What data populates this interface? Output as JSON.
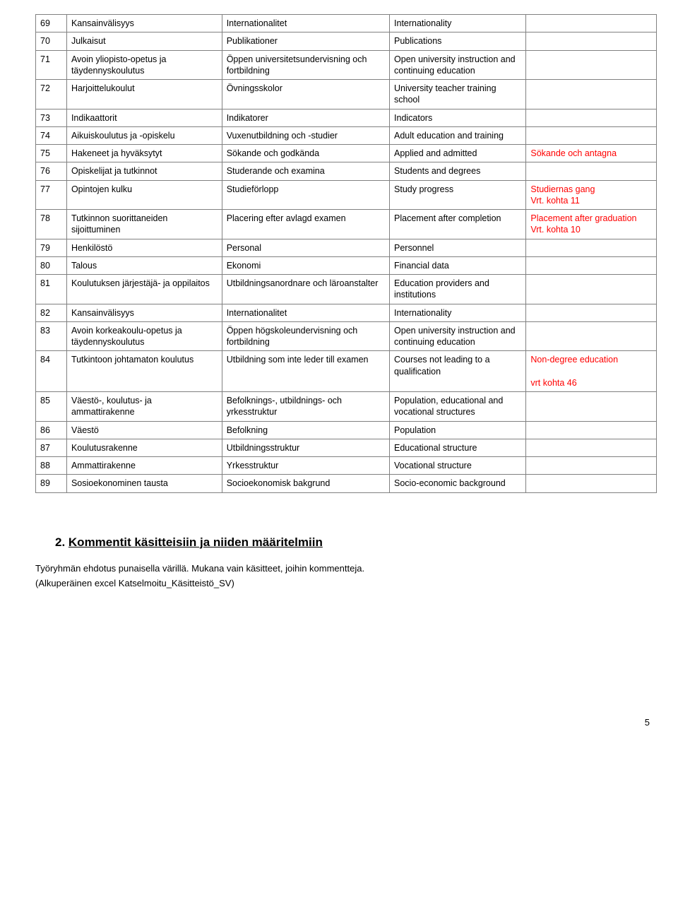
{
  "rows": [
    {
      "n": "69",
      "fi": "Kansainvälisyys",
      "sv": "Internationalitet",
      "en": "Internationality",
      "note": ""
    },
    {
      "n": "70",
      "fi": "Julkaisut",
      "sv": "Publikationer",
      "en": "Publications",
      "note": ""
    },
    {
      "n": "71",
      "fi": "Avoin yliopisto-opetus ja täydennyskoulutus",
      "sv": "Öppen universitetsundervisning och fortbildning",
      "en": "Open university instruction and continuing education",
      "note": ""
    },
    {
      "n": "72",
      "fi": "Harjoittelukoulut",
      "sv": "Övningsskolor",
      "en": "University teacher training school",
      "note": ""
    },
    {
      "n": "73",
      "fi": "Indikaattorit",
      "sv": "Indikatorer",
      "en": "Indicators",
      "note": ""
    },
    {
      "n": "74",
      "fi": "Aikuiskoulutus ja -opiskelu",
      "sv": "Vuxenutbildning och -studier",
      "en": "Adult education and training",
      "note": ""
    },
    {
      "n": "75",
      "fi": "Hakeneet ja hyväksytyt",
      "sv": "Sökande och godkända",
      "en": "Applied and admitted",
      "note": "Sökande och antagna"
    },
    {
      "n": "76",
      "fi": "Opiskelijat ja tutkinnot",
      "sv": "Studerande och examina",
      "en": "Students and degrees",
      "note": ""
    },
    {
      "n": "77",
      "fi": "Opintojen kulku",
      "sv": "Studieförlopp",
      "en": "Study progress",
      "note": " Studiernas gang\nVrt. kohta 11"
    },
    {
      "n": "78",
      "fi": "Tutkinnon suorittaneiden sijoittuminen",
      "sv": "Placering efter avlagd examen",
      "en": "Placement after completion",
      "note": " Placement after graduation\nVrt. kohta 10"
    },
    {
      "n": "79",
      "fi": "Henkilöstö",
      "sv": "Personal",
      "en": "Personnel",
      "note": ""
    },
    {
      "n": "80",
      "fi": "Talous",
      "sv": "Ekonomi",
      "en": "Financial data",
      "note": ""
    },
    {
      "n": "81",
      "fi": "Koulutuksen järjestäjä- ja oppilaitos",
      "sv": "Utbildningsanordnare och läroanstalter",
      "en": "Education providers and institutions",
      "note": ""
    },
    {
      "n": "82",
      "fi": "Kansainvälisyys",
      "sv": "Internationalitet",
      "en": "Internationality",
      "note": ""
    },
    {
      "n": "83",
      "fi": "Avoin korkeakoulu-opetus ja täydennyskoulutus",
      "sv": "Öppen högskoleundervisning och fortbildning",
      "en": "Open university instruction and continuing education",
      "note": ""
    },
    {
      "n": "84",
      "fi": "Tutkintoon johtamaton koulutus",
      "sv": "Utbildning som inte leder till examen",
      "en": "Courses not leading to a qualification",
      "note": " Non-degree education\n\nvrt kohta 46"
    },
    {
      "n": "85",
      "fi": "Väestö-, koulutus- ja ammattirakenne",
      "sv": "Befolknings-, utbildnings- och yrkesstruktur",
      "en": "Population, educational and vocational structures",
      "note": ""
    },
    {
      "n": "86",
      "fi": "Väestö",
      "sv": "Befolkning",
      "en": "Population",
      "note": ""
    },
    {
      "n": "87",
      "fi": "Koulutusrakenne",
      "sv": "Utbildningsstruktur",
      "en": "Educational structure",
      "note": ""
    },
    {
      "n": "88",
      "fi": "Ammattirakenne",
      "sv": "Yrkesstruktur",
      "en": "Vocational structure",
      "note": ""
    },
    {
      "n": "89",
      "fi": "Sosioekonominen tausta",
      "sv": "Socioekonomisk bakgrund",
      "en": "Socio-economic background",
      "note": ""
    }
  ],
  "heading_prefix": "2. ",
  "heading_text": "Kommentit käsitteisiin ja niiden määritelmiin",
  "para1": "Työryhmän ehdotus punaisella värillä. Mukana vain käsitteet, joihin kommentteja.",
  "para2": "(Alkuperäinen excel Katselmoitu_Käsitteistö_SV)",
  "page_number": "5",
  "colors": {
    "note_red": "#ff0000",
    "border": "#808080"
  }
}
